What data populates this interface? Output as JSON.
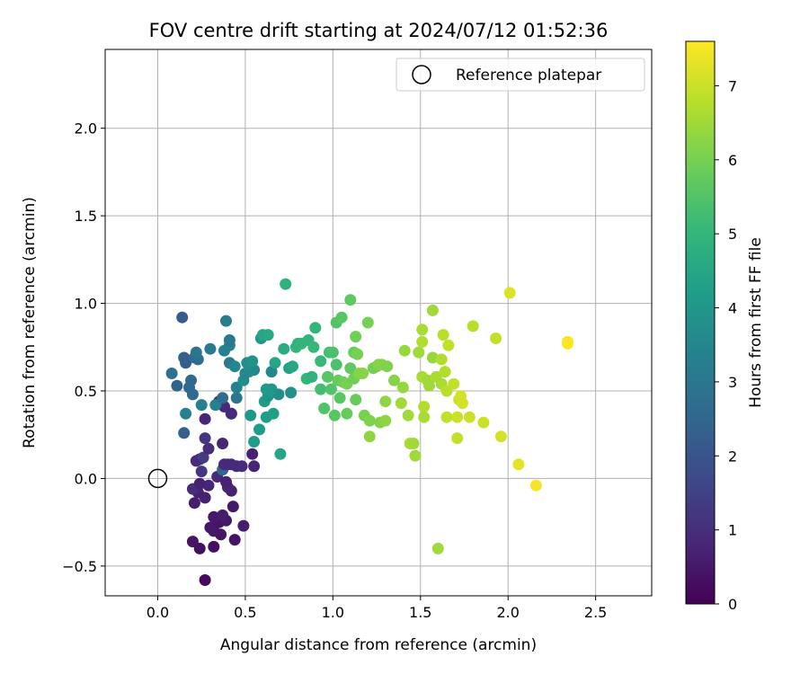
{
  "chart_data": {
    "type": "scatter",
    "title": "FOV centre drift starting at 2024/07/12 01:52:36",
    "xlabel": "Angular distance from reference (arcmin)",
    "ylabel": "Rotation from reference (arcmin)",
    "xlim": [
      -0.3,
      2.82
    ],
    "ylim": [
      -0.67,
      2.45
    ],
    "xticks": [
      0.0,
      0.5,
      1.0,
      1.5,
      2.0,
      2.5
    ],
    "xtick_labels": [
      "0.0",
      "0.5",
      "1.0",
      "1.5",
      "2.0",
      "2.5"
    ],
    "yticks": [
      -0.5,
      0.0,
      0.5,
      1.0,
      1.5,
      2.0
    ],
    "ytick_labels": [
      "−0.5",
      "0.0",
      "0.5",
      "1.0",
      "1.5",
      "2.0"
    ],
    "grid": true,
    "legend": {
      "position": "top-right",
      "entries": [
        "Reference platepar"
      ]
    },
    "reference_point": {
      "x": 0.0,
      "y": 0.0
    },
    "colorbar": {
      "label": "Hours from first FF file",
      "range": [
        0,
        7.6
      ],
      "ticks": [
        0,
        1,
        2,
        3,
        4,
        5,
        6,
        7
      ],
      "tick_labels": [
        "0",
        "1",
        "2",
        "3",
        "4",
        "5",
        "6",
        "7"
      ],
      "colormap": "viridis",
      "colors": [
        "#440154",
        "#482878",
        "#3e4989",
        "#31688e",
        "#26828e",
        "#1f9e89",
        "#35b779",
        "#6ece58",
        "#b5de2b",
        "#fde725"
      ]
    },
    "points": [
      [
        0.27,
        -0.58,
        0.2
      ],
      [
        0.24,
        -0.4,
        0.3
      ],
      [
        0.32,
        -0.39,
        0.3
      ],
      [
        0.2,
        -0.36,
        0.4
      ],
      [
        0.44,
        -0.35,
        0.4
      ],
      [
        0.32,
        -0.3,
        0.5
      ],
      [
        0.36,
        -0.32,
        0.4
      ],
      [
        0.49,
        -0.27,
        0.6
      ],
      [
        0.3,
        -0.28,
        0.5
      ],
      [
        0.35,
        -0.25,
        0.4
      ],
      [
        0.39,
        -0.24,
        0.5
      ],
      [
        0.32,
        -0.22,
        0.5
      ],
      [
        0.37,
        -0.21,
        0.6
      ],
      [
        0.43,
        -0.16,
        0.5
      ],
      [
        0.21,
        -0.14,
        0.6
      ],
      [
        0.23,
        -0.08,
        0.7
      ],
      [
        0.27,
        -0.11,
        0.7
      ],
      [
        0.2,
        -0.06,
        1.0
      ],
      [
        0.42,
        -0.07,
        0.7
      ],
      [
        0.29,
        -0.04,
        0.8
      ],
      [
        0.4,
        -0.05,
        0.8
      ],
      [
        0.24,
        -0.03,
        0.7
      ],
      [
        0.34,
        0.01,
        0.9
      ],
      [
        0.39,
        -0.02,
        0.7
      ],
      [
        0.25,
        0.04,
        1.2
      ],
      [
        0.37,
        0.05,
        2.5
      ],
      [
        0.24,
        0.11,
        0.8
      ],
      [
        0.22,
        0.1,
        0.9
      ],
      [
        0.26,
        0.12,
        1.3
      ],
      [
        0.29,
        0.17,
        1.0
      ],
      [
        0.38,
        0.08,
        0.9
      ],
      [
        0.4,
        0.08,
        0.9
      ],
      [
        0.42,
        0.08,
        0.9
      ],
      [
        0.45,
        0.07,
        0.9
      ],
      [
        0.48,
        0.07,
        0.9
      ],
      [
        0.55,
        0.07,
        0.8
      ],
      [
        0.54,
        0.14,
        0.7
      ],
      [
        0.37,
        0.2,
        0.8
      ],
      [
        0.27,
        0.23,
        1.2
      ],
      [
        0.27,
        0.34,
        0.8
      ],
      [
        0.35,
        0.44,
        1.0
      ],
      [
        0.38,
        0.41,
        0.9
      ],
      [
        0.42,
        0.37,
        1.0
      ],
      [
        0.42,
        0.37,
        0.9
      ],
      [
        0.15,
        0.26,
        2.3
      ],
      [
        0.16,
        0.37,
        3.3
      ],
      [
        0.25,
        0.42,
        3.3
      ],
      [
        0.33,
        0.42,
        3.3
      ],
      [
        0.37,
        0.46,
        2.7
      ],
      [
        0.45,
        0.46,
        3.0
      ],
      [
        0.45,
        0.52,
        3.3
      ],
      [
        0.53,
        0.36,
        4.0
      ],
      [
        0.55,
        0.21,
        4.2
      ],
      [
        0.58,
        0.28,
        4.2
      ],
      [
        0.62,
        0.35,
        4.2
      ],
      [
        0.66,
        0.37,
        4.3
      ],
      [
        0.61,
        0.44,
        4.2
      ],
      [
        0.63,
        0.47,
        3.9
      ],
      [
        0.69,
        0.48,
        3.7
      ],
      [
        0.76,
        0.49,
        3.8
      ],
      [
        0.62,
        0.51,
        4.1
      ],
      [
        0.65,
        0.51,
        4.0
      ],
      [
        0.49,
        0.56,
        3.7
      ],
      [
        0.5,
        0.6,
        3.5
      ],
      [
        0.52,
        0.61,
        3.6
      ],
      [
        0.55,
        0.62,
        3.6
      ],
      [
        0.65,
        0.61,
        3.5
      ],
      [
        0.08,
        0.6,
        2.8
      ],
      [
        0.11,
        0.53,
        2.4
      ],
      [
        0.18,
        0.52,
        2.5
      ],
      [
        0.19,
        0.56,
        2.6
      ],
      [
        0.2,
        0.48,
        2.6
      ],
      [
        0.16,
        0.66,
        2.2
      ],
      [
        0.15,
        0.69,
        2.3
      ],
      [
        0.21,
        0.69,
        2.6
      ],
      [
        0.23,
        0.68,
        2.7
      ],
      [
        0.22,
        0.72,
        3.0
      ],
      [
        0.3,
        0.74,
        3.1
      ],
      [
        0.38,
        0.73,
        3.3
      ],
      [
        0.41,
        0.76,
        3.3
      ],
      [
        0.41,
        0.79,
        3.1
      ],
      [
        0.41,
        0.66,
        3.1
      ],
      [
        0.44,
        0.64,
        3.5
      ],
      [
        0.51,
        0.66,
        3.7
      ],
      [
        0.54,
        0.67,
        3.9
      ],
      [
        0.39,
        0.9,
        3.2
      ],
      [
        0.14,
        0.92,
        2.2
      ],
      [
        0.59,
        0.8,
        4.0
      ],
      [
        0.6,
        0.82,
        4.5
      ],
      [
        0.63,
        0.82,
        4.6
      ],
      [
        0.67,
        0.66,
        4.5
      ],
      [
        0.72,
        0.74,
        4.7
      ],
      [
        0.7,
        0.14,
        4.5
      ],
      [
        0.73,
        1.11,
        4.9
      ],
      [
        0.75,
        0.63,
        4.3
      ],
      [
        0.77,
        0.64,
        4.5
      ],
      [
        0.79,
        0.75,
        5.0
      ],
      [
        0.8,
        0.77,
        4.9
      ],
      [
        0.82,
        0.77,
        5.0
      ],
      [
        0.86,
        0.79,
        5.0
      ],
      [
        0.85,
        0.57,
        5.0
      ],
      [
        0.88,
        0.58,
        4.9
      ],
      [
        0.89,
        0.75,
        5.1
      ],
      [
        0.9,
        0.86,
        5.0
      ],
      [
        0.93,
        0.67,
        5.1
      ],
      [
        0.93,
        0.51,
        5.3
      ],
      [
        0.95,
        0.4,
        5.5
      ],
      [
        0.97,
        0.58,
        5.6
      ],
      [
        0.98,
        0.72,
        5.3
      ],
      [
        0.99,
        0.51,
        5.5
      ],
      [
        1.0,
        0.72,
        5.4
      ],
      [
        1.02,
        0.65,
        5.4
      ],
      [
        1.01,
        0.36,
        5.6
      ],
      [
        1.02,
        0.89,
        5.5
      ],
      [
        1.05,
        0.92,
        5.6
      ],
      [
        1.03,
        0.56,
        5.8
      ],
      [
        1.04,
        0.46,
        5.6
      ],
      [
        1.06,
        0.55,
        5.9
      ],
      [
        1.08,
        0.54,
        6.0
      ],
      [
        1.08,
        0.37,
        5.8
      ],
      [
        1.1,
        0.63,
        5.7
      ],
      [
        1.1,
        1.02,
        5.7
      ],
      [
        1.12,
        0.72,
        5.8
      ],
      [
        1.12,
        0.57,
        5.9
      ],
      [
        1.13,
        0.45,
        5.8
      ],
      [
        1.13,
        0.81,
        5.9
      ],
      [
        1.14,
        0.71,
        6.0
      ],
      [
        1.15,
        0.6,
        6.2
      ],
      [
        1.17,
        0.6,
        6.2
      ],
      [
        1.18,
        0.36,
        6.0
      ],
      [
        1.2,
        0.89,
        6.0
      ],
      [
        1.21,
        0.33,
        6.1
      ],
      [
        1.21,
        0.24,
        6.3
      ],
      [
        1.23,
        0.63,
        6.0
      ],
      [
        1.25,
        0.64,
        5.9
      ],
      [
        1.26,
        0.65,
        6.2
      ],
      [
        1.27,
        0.32,
        6.2
      ],
      [
        1.28,
        0.65,
        6.2
      ],
      [
        1.3,
        0.44,
        6.3
      ],
      [
        1.3,
        0.33,
        6.3
      ],
      [
        1.31,
        0.64,
        6.1
      ],
      [
        1.35,
        0.56,
        6.2
      ],
      [
        1.39,
        0.43,
        6.5
      ],
      [
        1.4,
        0.52,
        6.4
      ],
      [
        1.41,
        0.73,
        6.4
      ],
      [
        1.43,
        0.36,
        6.5
      ],
      [
        1.44,
        0.2,
        6.6
      ],
      [
        1.46,
        0.2,
        6.5
      ],
      [
        1.47,
        0.13,
        6.5
      ],
      [
        1.49,
        0.72,
        6.5
      ],
      [
        1.51,
        0.58,
        6.6
      ],
      [
        1.51,
        0.85,
        6.6
      ],
      [
        1.51,
        0.78,
        6.7
      ],
      [
        1.52,
        0.41,
        6.7
      ],
      [
        1.52,
        0.35,
        6.6
      ],
      [
        1.54,
        0.56,
        6.5
      ],
      [
        1.55,
        0.53,
        6.5
      ],
      [
        1.57,
        0.96,
        6.5
      ],
      [
        1.57,
        0.69,
        6.4
      ],
      [
        1.59,
        0.58,
        6.6
      ],
      [
        1.6,
        -0.4,
        6.5
      ],
      [
        1.62,
        0.54,
        6.6
      ],
      [
        1.62,
        0.68,
        6.7
      ],
      [
        1.63,
        0.82,
        6.8
      ],
      [
        1.64,
        0.61,
        6.7
      ],
      [
        1.65,
        0.5,
        6.8
      ],
      [
        1.65,
        0.35,
        6.9
      ],
      [
        1.66,
        0.76,
        6.9
      ],
      [
        1.69,
        0.54,
        6.9
      ],
      [
        1.71,
        0.23,
        6.9
      ],
      [
        1.71,
        0.35,
        7.0
      ],
      [
        1.72,
        0.45,
        7.0
      ],
      [
        1.73,
        0.47,
        7.1
      ],
      [
        1.74,
        0.43,
        7.1
      ],
      [
        1.78,
        0.35,
        7.0
      ],
      [
        1.8,
        0.87,
        6.8
      ],
      [
        1.86,
        0.32,
        7.0
      ],
      [
        1.93,
        0.8,
        6.9
      ],
      [
        1.96,
        0.24,
        7.1
      ],
      [
        2.01,
        1.06,
        7.2
      ],
      [
        2.06,
        0.08,
        7.3
      ],
      [
        2.16,
        -0.04,
        7.5
      ],
      [
        2.34,
        0.78,
        7.5
      ],
      [
        2.34,
        0.77,
        7.6
      ]
    ]
  }
}
